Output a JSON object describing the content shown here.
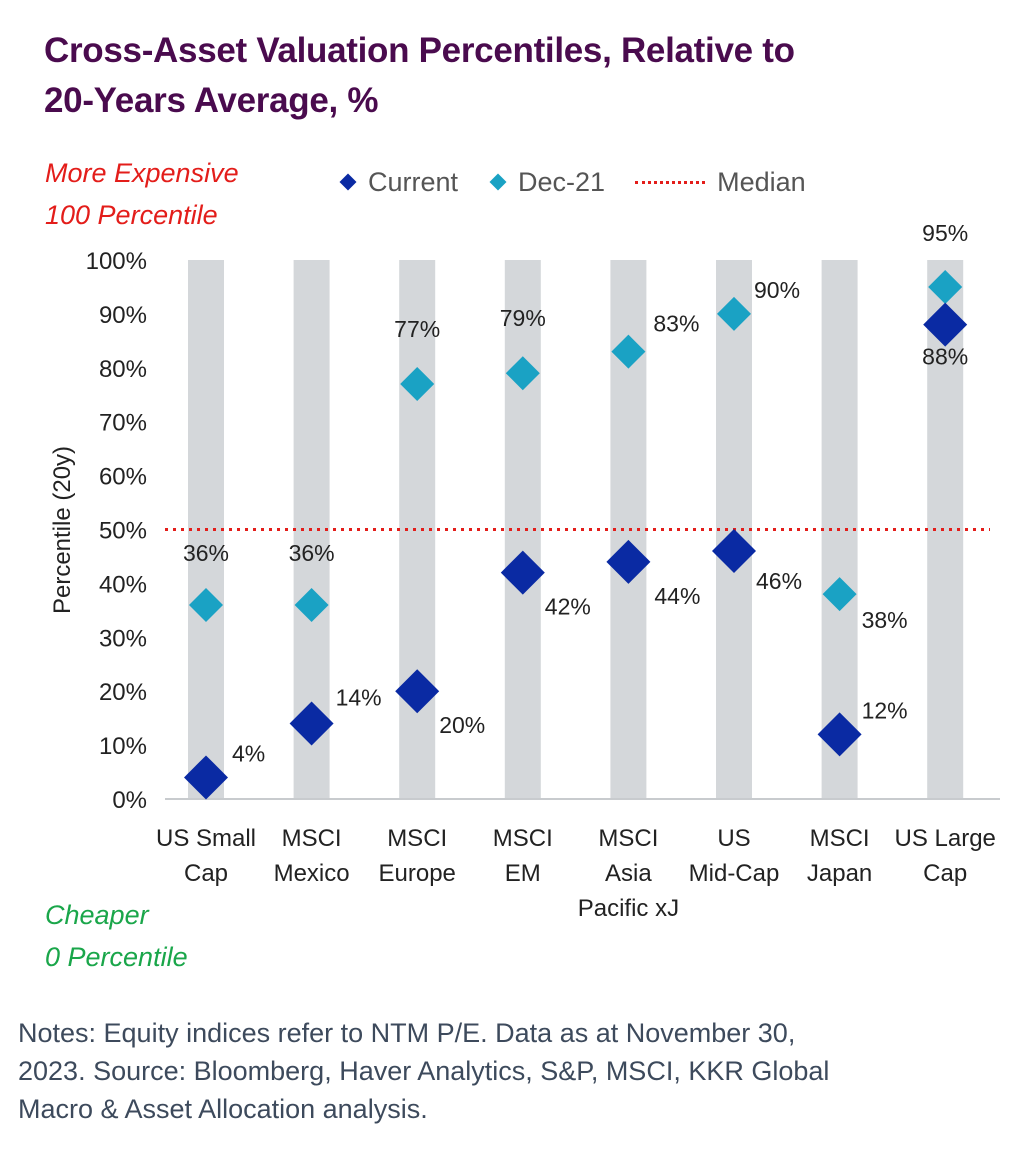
{
  "title": {
    "line1": "Cross-Asset Valuation Percentiles, Relative to",
    "line2": "20-Years Average, %"
  },
  "annotations": {
    "top_line1": "More Expensive",
    "top_line2": "100 Percentile",
    "bottom_line1": "Cheaper",
    "bottom_line2": "0 Percentile"
  },
  "legend": {
    "current": "Current",
    "dec21": "Dec-21",
    "median": "Median"
  },
  "colors": {
    "current": "#0a2aa3",
    "dec21": "#1aa2c4",
    "median": "#e31d1a",
    "column": "#d4d7da",
    "title": "#4a0b4e"
  },
  "chart_data": {
    "type": "scatter",
    "title": "Cross-Asset Valuation Percentiles, Relative to 20-Years Average, %",
    "ylabel": "Percentile (20y)",
    "ylim": [
      0,
      100
    ],
    "yticks": [
      "0%",
      "10%",
      "20%",
      "30%",
      "40%",
      "50%",
      "60%",
      "70%",
      "80%",
      "90%",
      "100%"
    ],
    "grid": false,
    "legend_position": "top",
    "categories": [
      [
        "US Small",
        "Cap"
      ],
      [
        "MSCI",
        "Mexico"
      ],
      [
        "MSCI",
        "Europe"
      ],
      [
        "MSCI",
        "EM"
      ],
      [
        "MSCI",
        "Asia",
        "Pacific xJ"
      ],
      [
        "US",
        "Mid-Cap"
      ],
      [
        "MSCI",
        "Japan"
      ],
      [
        "US Large",
        "Cap"
      ]
    ],
    "series": [
      {
        "name": "Current",
        "values": [
          4,
          14,
          20,
          42,
          44,
          46,
          12,
          88
        ],
        "labels": [
          "4%",
          "14%",
          "20%",
          "42%",
          "44%",
          "46%",
          "12%",
          "88%"
        ]
      },
      {
        "name": "Dec-21",
        "values": [
          36,
          36,
          77,
          79,
          83,
          90,
          38,
          95
        ],
        "labels": [
          "36%",
          "36%",
          "77%",
          "79%",
          "83%",
          "90%",
          "38%",
          "95%"
        ]
      }
    ],
    "median": 50
  },
  "notes": {
    "line1": "Notes: Equity indices refer to NTM P/E. Data as at November 30,",
    "line2": "2023. Source: Bloomberg, Haver Analytics, S&P, MSCI, KKR Global",
    "line3": "Macro & Asset Allocation analysis."
  }
}
